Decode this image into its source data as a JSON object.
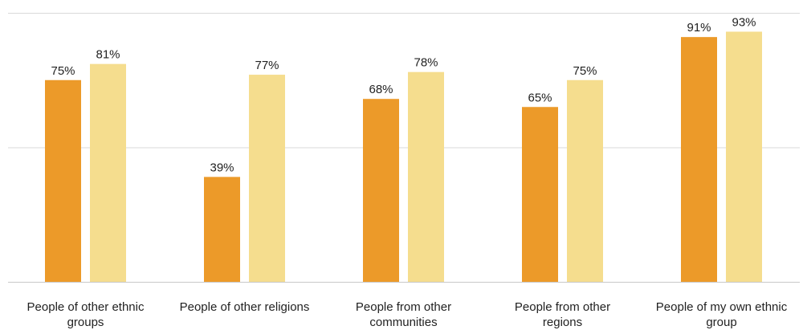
{
  "chart_data": {
    "type": "bar",
    "title": "",
    "xlabel": "",
    "ylabel": "",
    "categories": [
      [
        "People of other ethnic",
        "groups"
      ],
      [
        "People of other religions"
      ],
      [
        "People from other",
        "communities"
      ],
      [
        "People from other",
        "regions"
      ],
      [
        "People of my own ethnic",
        "group"
      ]
    ],
    "series": [
      {
        "color": "#ec9a29",
        "values": [
          75,
          39,
          68,
          65,
          91
        ],
        "labels": [
          "75%",
          "39%",
          "68%",
          "65%",
          "91%"
        ]
      },
      {
        "color": "#f5dd8e",
        "values": [
          81,
          77,
          78,
          75,
          93
        ],
        "labels": [
          "81%",
          "77%",
          "78%",
          "75%",
          "93%"
        ]
      }
    ],
    "ylim": [
      0,
      100
    ],
    "grid": true,
    "legend": "none"
  }
}
